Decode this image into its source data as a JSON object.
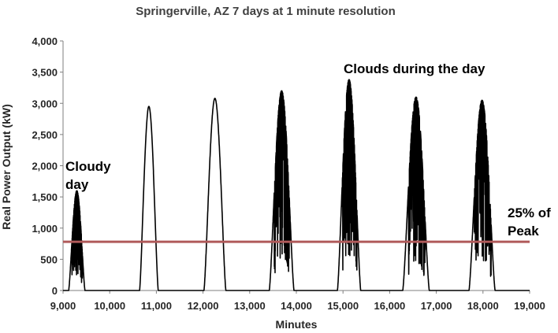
{
  "chart_data": {
    "type": "line",
    "title": "Springerville, AZ 7 days at 1 minute resolution",
    "xlabel": "Minutes",
    "ylabel": "Real Power Output (kW)",
    "xlim": [
      9000,
      19000
    ],
    "ylim": [
      0,
      4000
    ],
    "x_ticks": [
      "9,000",
      "10,000",
      "11,000",
      "12,000",
      "13,000",
      "14,000",
      "15,000",
      "16,000",
      "17,000",
      "18,000",
      "19,000"
    ],
    "y_ticks": [
      "0",
      "500",
      "1,000",
      "1,500",
      "2,000",
      "2,500",
      "3,000",
      "3,500",
      "4,000"
    ],
    "grid": false,
    "legend": "none",
    "colors": {
      "series": "#000000",
      "reference_line": "#b05a5a"
    },
    "series": [
      {
        "days": [
          {
            "start": 9120,
            "end": 9470,
            "peak": 1600,
            "cloudy": true
          },
          {
            "start": 10640,
            "end": 11040,
            "peak": 2950,
            "cloudy": false
          },
          {
            "start": 12020,
            "end": 12490,
            "peak": 3080,
            "cloudy": false
          },
          {
            "start": 13420,
            "end": 13950,
            "peak": 3200,
            "cloudy": true
          },
          {
            "start": 14880,
            "end": 15380,
            "peak": 3380,
            "cloudy": true
          },
          {
            "start": 16280,
            "end": 16850,
            "peak": 3100,
            "cloudy": true
          },
          {
            "start": 17700,
            "end": 18260,
            "peak": 3050,
            "cloudy": true
          }
        ]
      }
    ],
    "reference_lines": [
      {
        "y": 780,
        "label": "25% of Peak"
      }
    ],
    "annotations": {
      "cloudy_day": [
        "Cloudy",
        "day"
      ],
      "clouds": "Clouds during the day",
      "peak": [
        "25% of",
        "Peak"
      ]
    }
  }
}
